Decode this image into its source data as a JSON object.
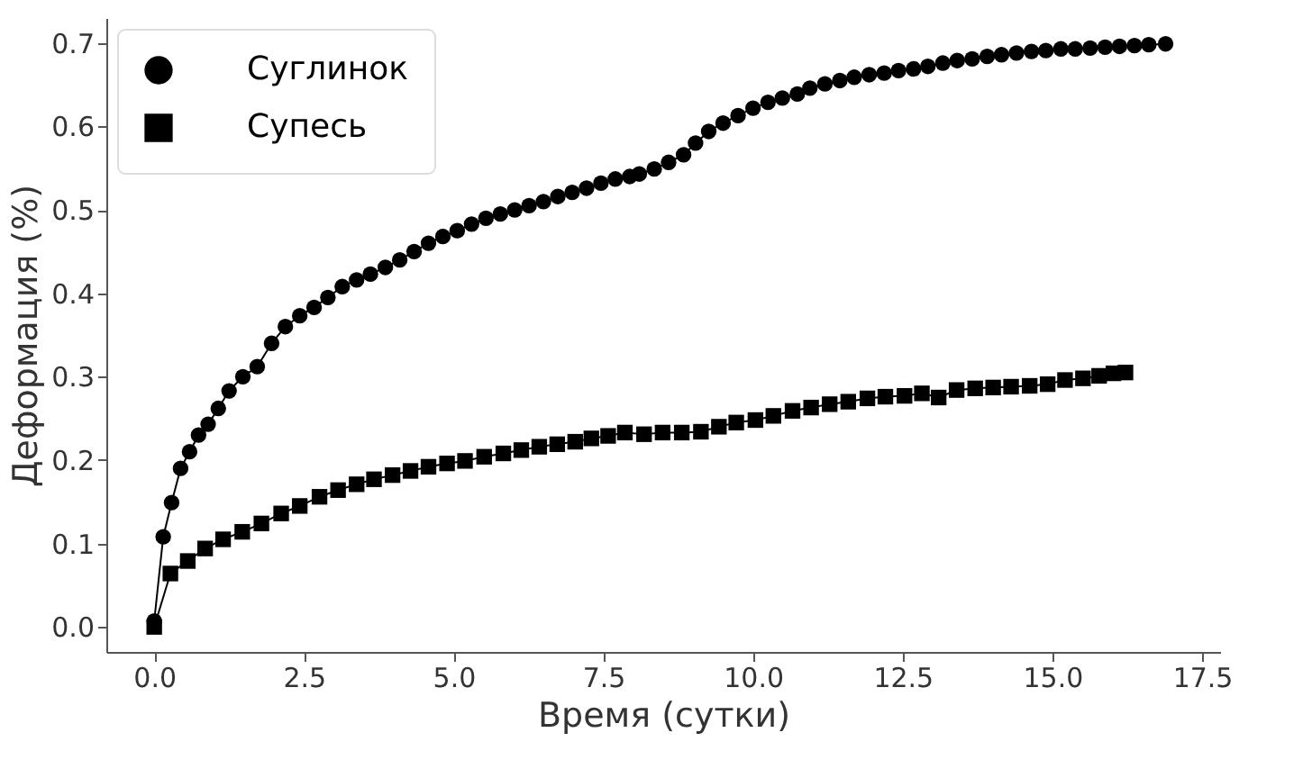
{
  "chart_data": {
    "type": "line",
    "xlabel": "Время (сутки)",
    "ylabel": "Деформация (%)",
    "xlim": [
      -0.8,
      17.8
    ],
    "ylim": [
      -0.03,
      0.73
    ],
    "xticks": [
      {
        "value": 0,
        "label": "0.0"
      },
      2.5,
      {
        "value": 5,
        "label": "5.0"
      },
      7.5,
      {
        "value": 10,
        "label": "10.0"
      },
      12.5,
      {
        "value": 15,
        "label": "15.0"
      },
      17.5
    ],
    "yticks": [
      {
        "value": 0,
        "label": "0.0"
      },
      0.1,
      0.2,
      0.3,
      0.4,
      0.5,
      0.6,
      0.7
    ],
    "grid": false,
    "legend": "top left",
    "line_style": "solid",
    "series": [
      {
        "name": "Суглинок",
        "color": "#000000",
        "marker": "circle",
        "x": [
          0,
          0.15,
          0.29,
          0.44,
          0.59,
          0.74,
          0.9,
          1.07,
          1.25,
          1.48,
          1.72,
          1.96,
          2.19,
          2.43,
          2.67,
          2.9,
          3.14,
          3.38,
          3.61,
          3.86,
          4.1,
          4.34,
          4.58,
          4.82,
          5.06,
          5.3,
          5.54,
          5.78,
          6.02,
          6.26,
          6.5,
          6.74,
          6.98,
          7.22,
          7.46,
          7.7,
          7.94,
          8.1,
          8.35,
          8.59,
          8.84,
          9.04,
          9.26,
          9.5,
          9.75,
          10.0,
          10.25,
          10.49,
          10.74,
          10.95,
          11.2,
          11.45,
          11.69,
          11.94,
          12.19,
          12.43,
          12.68,
          12.92,
          13.17,
          13.41,
          13.66,
          13.91,
          14.15,
          14.4,
          14.65,
          14.89,
          15.14,
          15.38,
          15.63,
          15.88,
          16.12,
          16.37,
          16.61,
          16.89
        ],
        "values": [
          0.007,
          0.108,
          0.149,
          0.19,
          0.21,
          0.23,
          0.243,
          0.262,
          0.283,
          0.3,
          0.312,
          0.34,
          0.36,
          0.373,
          0.383,
          0.395,
          0.408,
          0.416,
          0.423,
          0.431,
          0.44,
          0.45,
          0.46,
          0.468,
          0.475,
          0.483,
          0.49,
          0.495,
          0.5,
          0.505,
          0.51,
          0.516,
          0.521,
          0.526,
          0.532,
          0.537,
          0.54,
          0.543,
          0.549,
          0.557,
          0.566,
          0.58,
          0.594,
          0.604,
          0.613,
          0.622,
          0.629,
          0.634,
          0.639,
          0.646,
          0.651,
          0.655,
          0.659,
          0.662,
          0.664,
          0.667,
          0.669,
          0.672,
          0.676,
          0.679,
          0.681,
          0.684,
          0.686,
          0.688,
          0.69,
          0.691,
          0.693,
          0.693,
          0.694,
          0.695,
          0.696,
          0.697,
          0.698,
          0.699
        ]
      },
      {
        "name": "Супесь",
        "color": "#000000",
        "marker": "square",
        "x": [
          0,
          0.27,
          0.56,
          0.85,
          1.15,
          1.47,
          1.79,
          2.12,
          2.43,
          2.76,
          3.07,
          3.38,
          3.67,
          3.98,
          4.28,
          4.58,
          4.89,
          5.19,
          5.51,
          5.83,
          6.13,
          6.43,
          6.73,
          7.03,
          7.3,
          7.58,
          7.86,
          8.18,
          8.49,
          8.81,
          9.13,
          9.43,
          9.72,
          10.04,
          10.34,
          10.66,
          10.97,
          11.28,
          11.59,
          11.91,
          12.21,
          12.53,
          12.82,
          13.1,
          13.4,
          13.71,
          14.01,
          14.31,
          14.62,
          14.92,
          15.21,
          15.51,
          15.78,
          16.02,
          16.22
        ],
        "values": [
          0.0,
          0.064,
          0.079,
          0.094,
          0.105,
          0.114,
          0.124,
          0.136,
          0.145,
          0.156,
          0.164,
          0.171,
          0.177,
          0.182,
          0.187,
          0.192,
          0.196,
          0.199,
          0.204,
          0.208,
          0.212,
          0.216,
          0.219,
          0.222,
          0.226,
          0.229,
          0.233,
          0.231,
          0.233,
          0.233,
          0.234,
          0.24,
          0.245,
          0.248,
          0.253,
          0.259,
          0.263,
          0.267,
          0.27,
          0.274,
          0.276,
          0.277,
          0.28,
          0.275,
          0.284,
          0.286,
          0.287,
          0.288,
          0.289,
          0.291,
          0.296,
          0.298,
          0.301,
          0.304,
          0.305
        ]
      }
    ]
  }
}
